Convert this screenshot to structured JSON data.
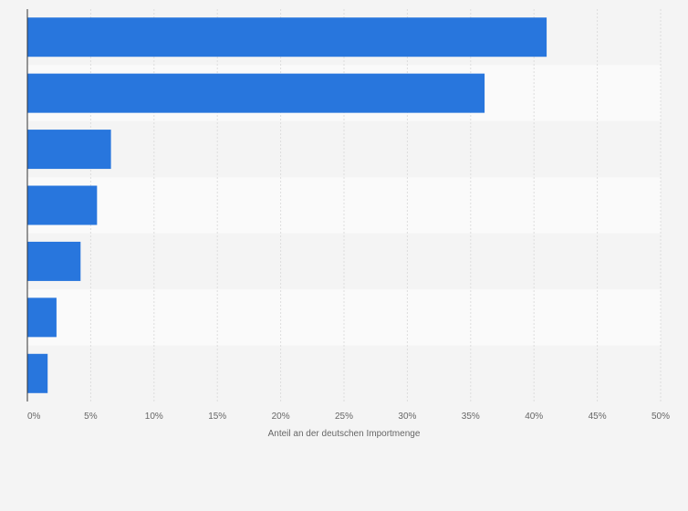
{
  "chart_data": {
    "type": "bar",
    "orientation": "horizontal",
    "categories": [
      "",
      "",
      "",
      "",
      "",
      "",
      ""
    ],
    "values": [
      41.0,
      36.1,
      6.6,
      5.5,
      4.2,
      2.3,
      1.6
    ],
    "title": "",
    "xlabel": "Anteil an der deutschen Importmenge",
    "ylabel": "",
    "xlim": [
      0,
      50
    ],
    "xticks": [
      0,
      5,
      10,
      15,
      20,
      25,
      30,
      35,
      40,
      45,
      50
    ],
    "xtick_labels": [
      "0%",
      "5%",
      "10%",
      "15%",
      "20%",
      "25%",
      "30%",
      "35%",
      "40%",
      "45%",
      "50%"
    ],
    "grid": true,
    "legend": "none",
    "colors": {
      "bar": "#2876dd",
      "band_light": "#fafafa",
      "band_dark": "#f4f4f4",
      "grid": "#dddddd",
      "axis": "#333333",
      "text": "#666666"
    }
  }
}
